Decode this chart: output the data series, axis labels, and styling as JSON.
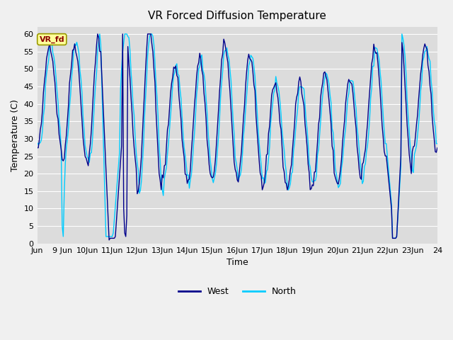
{
  "title": "VR Forced Diffusion Temperature",
  "xlabel": "Time",
  "ylabel": "Temperature (C)",
  "west_color": "#00008B",
  "north_color": "#00CCFF",
  "legend_label_west": "West",
  "legend_label_north": "North",
  "annotation_text": "VR_fd",
  "annotation_bg": "#FFFF99",
  "annotation_fg": "#8B0000",
  "fig_bg": "#f0f0f0",
  "plot_bg": "#dcdcdc",
  "grid_color": "#ffffff"
}
